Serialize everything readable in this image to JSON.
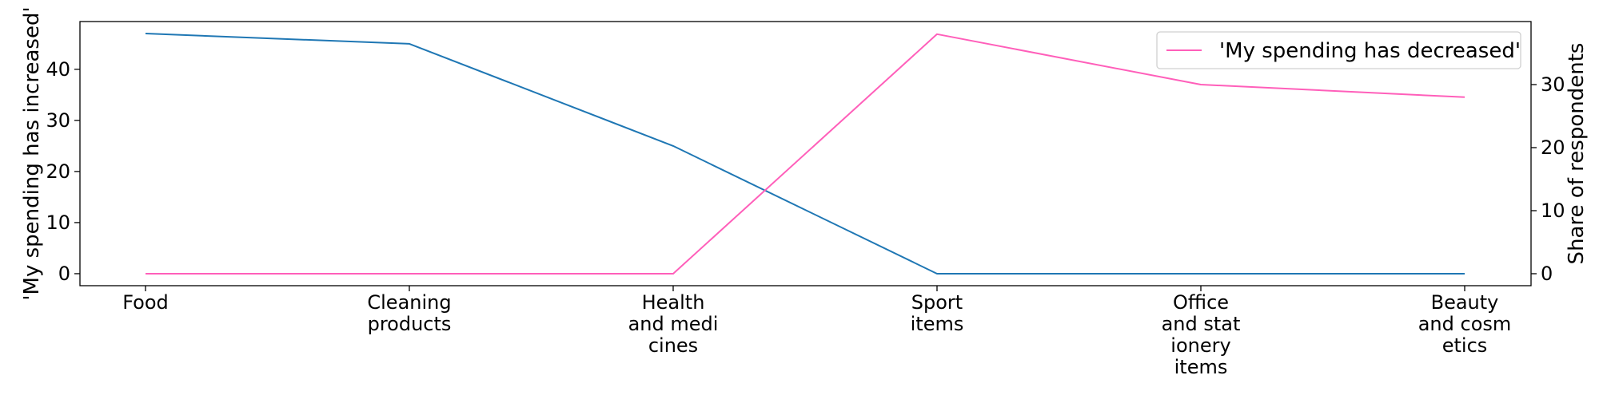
{
  "chart_data": {
    "type": "line",
    "categories": [
      [
        "Food"
      ],
      [
        "Cleaning",
        "products"
      ],
      [
        "Health",
        "and medi",
        "cines"
      ],
      [
        "Sport",
        "items"
      ],
      [
        "Office",
        "and stat",
        "ionery",
        "items"
      ],
      [
        "Beauty",
        "and cosm",
        "etics"
      ]
    ],
    "series": [
      {
        "name": "",
        "axis": "left",
        "color": "#1f77b4",
        "values": [
          47,
          45,
          25,
          0,
          0,
          0
        ]
      },
      {
        "name": "'My spending has decreased'",
        "axis": "right",
        "color": "#ff5fba",
        "values": [
          0,
          0,
          0,
          38,
          30,
          28
        ]
      }
    ],
    "ylabel_left": "'My spending has increased'",
    "ylabel_right": "Share of respondents",
    "ylim_left": [
      -2.35,
      49.35
    ],
    "ylim_right": [
      -1.9,
      40
    ],
    "yticks_left": [
      0,
      10,
      20,
      30,
      40
    ],
    "yticks_right": [
      0,
      10,
      20,
      30
    ],
    "legend_position": "upper right",
    "grid": false
  }
}
